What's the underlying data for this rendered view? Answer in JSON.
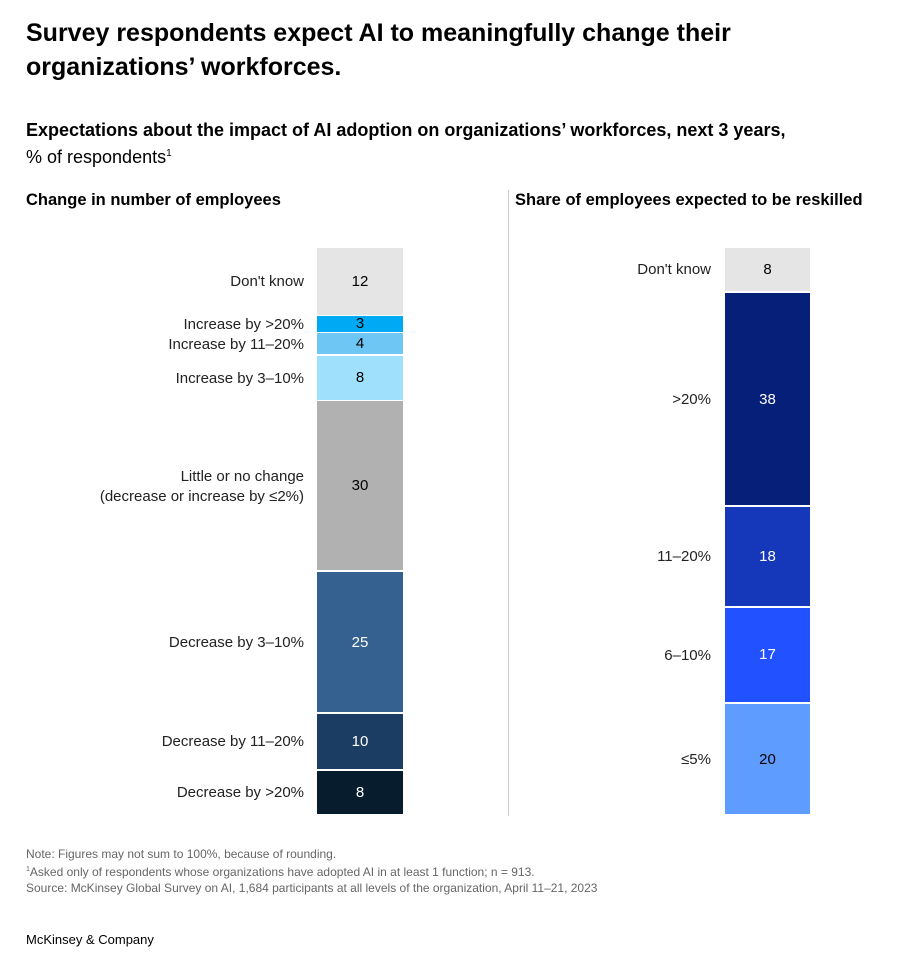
{
  "title": "Survey respondents expect AI to meaningfully change their organizations’ workforces.",
  "subtitle": {
    "bold": "Expectations about the impact of AI adoption on organizations’ workforces, next 3 years,",
    "normal": "% of respondents",
    "footnote_mark": "1"
  },
  "chart_data": [
    {
      "type": "bar",
      "subtype": "stacked-100",
      "title": "Change in number of employees",
      "categories": [
        "Don't know",
        "Increase by >20%",
        "Increase by 11–20%",
        "Increase by 3–10%",
        "Little or no change\n(decrease or increase by ≤2%)",
        "Decrease by 3–10%",
        "Decrease by 11–20%",
        "Decrease by >20%"
      ],
      "values": [
        12,
        3,
        4,
        8,
        30,
        25,
        10,
        8
      ],
      "colors": [
        "#e5e5e5",
        "#00a9f4",
        "#6ec6f5",
        "#9fe1fc",
        "#b1b1b1",
        "#34618f",
        "#1b3d63",
        "#071c2c"
      ],
      "label_colors": [
        "#000",
        "#000",
        "#000",
        "#000",
        "#000",
        "#fff",
        "#fff",
        "#fff"
      ]
    },
    {
      "type": "bar",
      "subtype": "stacked-100",
      "title": "Share of employees expected to be reskilled",
      "categories": [
        "Don't know",
        ">20%",
        "11–20%",
        "6–10%",
        "≤5%"
      ],
      "values": [
        8,
        38,
        18,
        17,
        20
      ],
      "colors": [
        "#e5e5e5",
        "#061f79",
        "#1537ba",
        "#2251ff",
        "#5e9cff"
      ],
      "label_colors": [
        "#000",
        "#fff",
        "#fff",
        "#fff",
        "#000"
      ]
    }
  ],
  "notes": {
    "note": "Note: Figures may not sum to 100%, because of rounding.",
    "footnote_mark": "1",
    "footnote": "Asked only of respondents whose organizations have adopted AI in at least 1 function; n = 913.",
    "source": "Source: McKinsey Global Survey on AI, 1,684 participants at all levels of the organization, April 11–21, 2023"
  },
  "brand": "McKinsey & Company"
}
